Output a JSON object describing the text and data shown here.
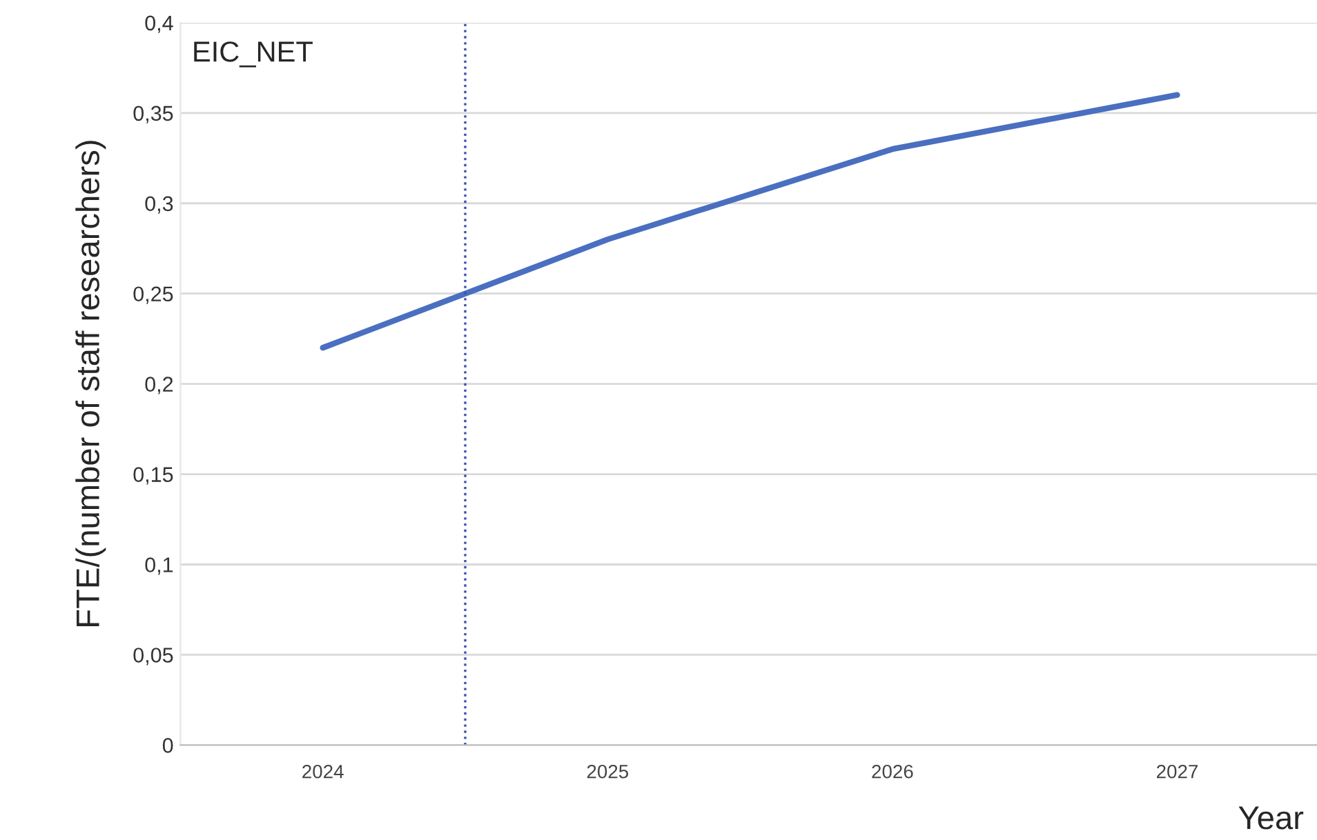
{
  "chart_data": {
    "type": "line",
    "xlabel": "Year",
    "ylabel": "FTE/(number of staff researchers)",
    "x": [
      2024,
      2025,
      2026,
      2027
    ],
    "series": [
      {
        "color": "#4a6fc0",
        "values": [
          0.22,
          0.28,
          0.33,
          0.36
        ]
      }
    ],
    "xlim": [
      2023.5,
      2027.5
    ],
    "xticks": [
      2024,
      2025,
      2026,
      2027
    ],
    "ylim": [
      0,
      0.4
    ],
    "yticks": [
      0,
      {
        "value": 0.05,
        "label": "0,05"
      },
      {
        "value": 0.1,
        "label": "0,1"
      },
      {
        "value": 0.15,
        "label": "0,15"
      },
      {
        "value": 0.2,
        "label": "0,2"
      },
      {
        "value": 0.25,
        "label": "0,25"
      },
      {
        "value": 0.3,
        "label": "0,3"
      },
      {
        "value": 0.35,
        "label": "0,35"
      },
      {
        "value": 0.4,
        "label": "0,4"
      }
    ],
    "ref_lines": [
      {
        "axis": "x",
        "value": 2024.5,
        "color": "#3a4fb0",
        "line_style": "dotted"
      }
    ],
    "annotations": [
      "EIC_NET"
    ],
    "grid": "y",
    "legend": false,
    "marker": "none",
    "line_style": "solid"
  }
}
